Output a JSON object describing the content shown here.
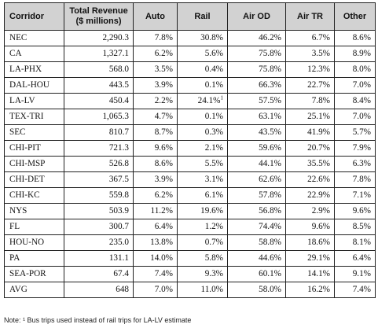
{
  "table": {
    "headers": {
      "corridor": "Corridor",
      "revenue_line1": "Total Revenue",
      "revenue_line2": "($ millions)",
      "auto": "Auto",
      "rail": "Rail",
      "air_od": "Air OD",
      "air_tr": "Air TR",
      "other": "Other"
    },
    "rows": [
      {
        "corridor": "NEC",
        "revenue": "2,290.3",
        "auto": "7.8%",
        "rail": "30.8%",
        "air_od": "46.2%",
        "air_tr": "6.7%",
        "other": "8.6%"
      },
      {
        "corridor": "CA",
        "revenue": "1,327.1",
        "auto": "6.2%",
        "rail": "5.6%",
        "air_od": "75.8%",
        "air_tr": "3.5%",
        "other": "8.9%"
      },
      {
        "corridor": "LA-PHX",
        "revenue": "568.0",
        "auto": "3.5%",
        "rail": "0.4%",
        "air_od": "75.8%",
        "air_tr": "12.3%",
        "other": "8.0%"
      },
      {
        "corridor": "DAL-HOU",
        "revenue": "443.5",
        "auto": "3.9%",
        "rail": "0.1%",
        "air_od": "66.3%",
        "air_tr": "22.7%",
        "other": "7.0%"
      },
      {
        "corridor": "LA-LV",
        "revenue": "450.4",
        "auto": "2.2%",
        "rail": "24.1%",
        "rail_sup": "1",
        "air_od": "57.5%",
        "air_tr": "7.8%",
        "other": "8.4%"
      },
      {
        "corridor": "TEX-TRI",
        "revenue": "1,065.3",
        "auto": "4.7%",
        "rail": "0.1%",
        "air_od": "63.1%",
        "air_tr": "25.1%",
        "other": "7.0%"
      },
      {
        "corridor": "SEC",
        "revenue": "810.7",
        "auto": "8.7%",
        "rail": "0.3%",
        "air_od": "43.5%",
        "air_tr": "41.9%",
        "other": "5.7%"
      },
      {
        "corridor": "CHI-PIT",
        "revenue": "721.3",
        "auto": "9.6%",
        "rail": "2.1%",
        "air_od": "59.6%",
        "air_tr": "20.7%",
        "other": "7.9%"
      },
      {
        "corridor": "CHI-MSP",
        "revenue": "526.8",
        "auto": "8.6%",
        "rail": "5.5%",
        "air_od": "44.1%",
        "air_tr": "35.5%",
        "other": "6.3%"
      },
      {
        "corridor": "CHI-DET",
        "revenue": "367.5",
        "auto": "3.9%",
        "rail": "3.1%",
        "air_od": "62.6%",
        "air_tr": "22.6%",
        "other": "7.8%"
      },
      {
        "corridor": "CHI-KC",
        "revenue": "559.8",
        "auto": "6.2%",
        "rail": "6.1%",
        "air_od": "57.8%",
        "air_tr": "22.9%",
        "other": "7.1%"
      },
      {
        "corridor": "NYS",
        "revenue": "503.9",
        "auto": "11.2%",
        "rail": "19.6%",
        "air_od": "56.8%",
        "air_tr": "2.9%",
        "other": "9.6%"
      },
      {
        "corridor": "FL",
        "revenue": "300.7",
        "auto": "6.4%",
        "rail": "1.2%",
        "air_od": "74.4%",
        "air_tr": "9.6%",
        "other": "8.5%"
      },
      {
        "corridor": "HOU-NO",
        "revenue": "235.0",
        "auto": "13.8%",
        "rail": "0.7%",
        "air_od": "58.8%",
        "air_tr": "18.6%",
        "other": "8.1%"
      },
      {
        "corridor": "PA",
        "revenue": "131.1",
        "auto": "14.0%",
        "rail": "5.8%",
        "air_od": "44.6%",
        "air_tr": "29.1%",
        "other": "6.4%"
      },
      {
        "corridor": "SEA-POR",
        "revenue": "67.4",
        "auto": "7.4%",
        "rail": "9.3%",
        "air_od": "60.1%",
        "air_tr": "14.1%",
        "other": "9.1%"
      },
      {
        "corridor": "AVG",
        "revenue": "648",
        "auto": "7.0%",
        "rail": "11.0%",
        "air_od": "58.0%",
        "air_tr": "16.2%",
        "other": "7.4%"
      }
    ]
  },
  "note": "Note: ¹ Bus trips used instead of rail trips for LA-LV estimate"
}
